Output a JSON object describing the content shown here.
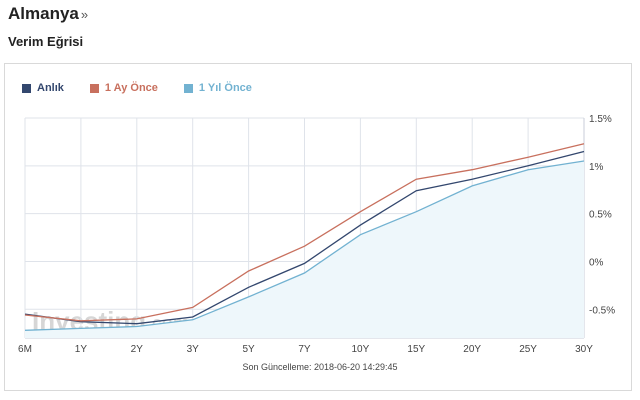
{
  "header": {
    "title": "Almanya",
    "title_arrow": "»",
    "subtitle": "Verim Eğrisi"
  },
  "footer": {
    "updated_label": "Son Güncelleme: 2018-06-20 14:29:45"
  },
  "watermark": {
    "text_main": "Investing",
    "text_suffix": ".com"
  },
  "colors": {
    "current": "#33476e",
    "month_ago": "#c8705e",
    "year_ago": "#72b2d1",
    "year_ago_fill": "#eef7fb",
    "grid": "#dfe3ea"
  },
  "chart_data": {
    "type": "line",
    "categories": [
      "6M",
      "1Y",
      "2Y",
      "3Y",
      "5Y",
      "7Y",
      "10Y",
      "15Y",
      "20Y",
      "25Y",
      "30Y"
    ],
    "y_ticks": [
      -0.5,
      0,
      0.5,
      1,
      1.5
    ],
    "y_tick_labels": [
      "-0.5%",
      "0%",
      "0.5%",
      "1%",
      "1.5%"
    ],
    "ylim": [
      -0.8,
      1.5
    ],
    "grid": true,
    "legend_position": "top-left",
    "series": [
      {
        "name": "Anlık",
        "color_key": "current",
        "values": [
          -0.55,
          -0.63,
          -0.65,
          -0.58,
          -0.27,
          -0.02,
          0.38,
          0.74,
          0.86,
          1.0,
          1.15
        ]
      },
      {
        "name": "1 Ay Önce",
        "color_key": "month_ago",
        "values": [
          -0.56,
          -0.62,
          -0.6,
          -0.48,
          -0.1,
          0.16,
          0.52,
          0.86,
          0.96,
          1.09,
          1.23
        ]
      },
      {
        "name": "1 Yıl Önce",
        "color_key": "year_ago",
        "area": true,
        "values": [
          -0.72,
          -0.7,
          -0.68,
          -0.61,
          -0.37,
          -0.12,
          0.28,
          0.52,
          0.79,
          0.96,
          1.05
        ]
      }
    ]
  }
}
